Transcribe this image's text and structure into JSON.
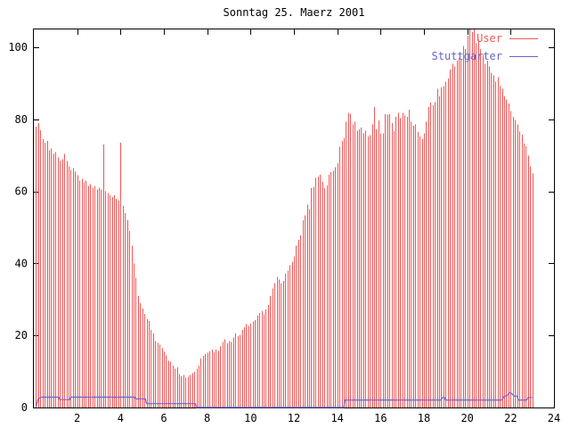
{
  "chart_data": {
    "type": "bar",
    "title": "Sonntag 25. Maerz 2001",
    "xlabel": "",
    "ylabel": "",
    "xlim": [
      0,
      24
    ],
    "ylim": [
      0,
      105
    ],
    "xticks": [
      2,
      4,
      6,
      8,
      10,
      12,
      14,
      16,
      18,
      20,
      22,
      24
    ],
    "yticks": [
      0,
      20,
      40,
      60,
      80,
      100
    ],
    "grid": false,
    "legend_position": "top-right",
    "axis_color": "#000000",
    "background_color": "#ffffff",
    "bar_series": {
      "name": "User",
      "style": "impulses",
      "color": "#ef5858",
      "x_start": 0.1,
      "x_step": 0.1,
      "values": [
        78,
        79,
        77,
        74.5,
        73.5,
        74,
        71.5,
        72,
        70.5,
        71,
        69.5,
        68.5,
        69,
        70.5,
        68.5,
        67,
        66,
        66.5,
        65.5,
        64.5,
        63,
        63.5,
        62.5,
        63,
        61.5,
        62,
        61,
        61.5,
        60.5,
        61,
        60.5,
        73,
        60,
        59.5,
        59,
        58.5,
        59,
        58,
        57.5,
        73.5,
        56,
        54,
        52,
        49,
        45,
        40,
        36,
        31,
        29,
        27.5,
        26,
        24.5,
        24,
        21.5,
        20.5,
        18.5,
        18,
        17.5,
        16.5,
        15.5,
        14.5,
        13,
        12.8,
        11.6,
        10.8,
        11.2,
        9.3,
        8.7,
        9,
        8.3,
        8.5,
        9.1,
        9.5,
        9.9,
        10.8,
        11.6,
        13.6,
        14.4,
        14.8,
        15.2,
        15.6,
        16.1,
        15.3,
        16.1,
        15.7,
        17,
        18.2,
        19,
        17.8,
        18.5,
        18.2,
        19.4,
        20.6,
        19.8,
        20.2,
        21.5,
        22.3,
        23.1,
        22.7,
        23.3,
        23.9,
        24.3,
        25.5,
        26.3,
        26.8,
        25.9,
        27.2,
        28.5,
        31,
        33,
        34.5,
        36.3,
        35.5,
        34.4,
        35.2,
        37.2,
        38,
        39.5,
        40.5,
        42,
        44.9,
        46.6,
        47.8,
        52,
        53.4,
        56.3,
        55.1,
        60.9,
        61.3,
        63.8,
        64.2,
        64.6,
        62.6,
        60.9,
        61.7,
        64.6,
        65.4,
        65.8,
        66.7,
        67.9,
        72.4,
        74.1,
        74.9,
        79.4,
        81.9,
        81.5,
        78.6,
        79.4,
        76.9,
        77.3,
        77.8,
        76.1,
        76.9,
        75.3,
        75.7,
        78.6,
        83.5,
        77.3,
        79.8,
        76.1,
        76.1,
        81.5,
        81.3,
        81.5,
        79,
        76.8,
        80.7,
        81.9,
        80.3,
        81.9,
        81.1,
        80.7,
        82.7,
        79.4,
        78.2,
        78.6,
        76.5,
        75.3,
        74.5,
        76.1,
        79.4,
        83.5,
        84.7,
        84,
        84.8,
        88.5,
        86.4,
        88.9,
        89.3,
        90.5,
        91.4,
        93.8,
        95.5,
        94.7,
        96.3,
        97.1,
        96.7,
        100.4,
        99.6,
        103.3,
        105,
        104.2,
        105,
        101.2,
        102.1,
        99.6,
        97.9,
        95.5,
        96.3,
        94.7,
        93,
        92.2,
        90.5,
        91.8,
        89.3,
        88.5,
        86.4,
        85.6,
        84.4,
        82.3,
        80.7,
        79.9,
        78.6,
        76.6,
        75.8,
        73.3,
        72.5,
        70,
        67,
        65
      ]
    },
    "line_series": {
      "name": "Stuttgarter",
      "style": "line",
      "color": "#6666cc",
      "points": [
        [
          0.1,
          0.3
        ],
        [
          0.2,
          2.6
        ],
        [
          0.35,
          3
        ],
        [
          1.15,
          3
        ],
        [
          1.2,
          2.3
        ],
        [
          1.65,
          2.3
        ],
        [
          1.7,
          3
        ],
        [
          4.65,
          3
        ],
        [
          4.7,
          2.5
        ],
        [
          5.15,
          2.5
        ],
        [
          5.2,
          1.2
        ],
        [
          7.45,
          1.2
        ],
        [
          7.5,
          0.15
        ],
        [
          14.3,
          0.15
        ],
        [
          14.35,
          2.2
        ],
        [
          18.8,
          2.2
        ],
        [
          18.85,
          2.9
        ],
        [
          18.95,
          2.9
        ],
        [
          19.0,
          2.2
        ],
        [
          21.6,
          2.2
        ],
        [
          21.7,
          3.2
        ],
        [
          21.85,
          3.5
        ],
        [
          21.95,
          4.3
        ],
        [
          22.05,
          4.0
        ],
        [
          22.15,
          3.3
        ],
        [
          22.3,
          3.3
        ],
        [
          22.35,
          2.2
        ],
        [
          22.75,
          2.2
        ],
        [
          22.8,
          2.9
        ],
        [
          23.0,
          2.9
        ]
      ]
    }
  }
}
